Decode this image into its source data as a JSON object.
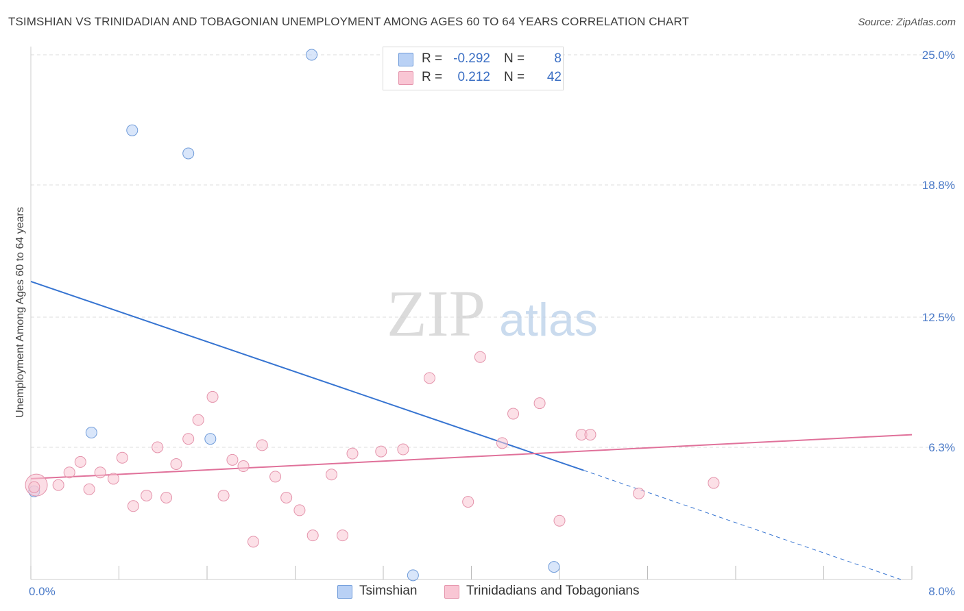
{
  "header": {
    "title": "TSIMSHIAN VS TRINIDADIAN AND TOBAGONIAN UNEMPLOYMENT AMONG AGES 60 TO 64 YEARS CORRELATION CHART",
    "source": "Source: ZipAtlas.com"
  },
  "watermark": {
    "zip": "ZIP",
    "atlas": "atlas"
  },
  "legend": {
    "rows": [
      {
        "r_label": "R =",
        "r_value": "-0.292",
        "n_label": "N =",
        "n_value": "8",
        "fill": "#b9d1f5",
        "stroke": "#6f9bd9"
      },
      {
        "r_label": "R =",
        "r_value": "0.212",
        "n_label": "N =",
        "n_value": "42",
        "fill": "#f9c6d4",
        "stroke": "#e493ab"
      }
    ],
    "bottom": [
      {
        "label": "Tsimshian",
        "fill": "#b9d1f5",
        "stroke": "#6f9bd9"
      },
      {
        "label": "Trinidadians and Tobagonians",
        "fill": "#f9c6d4",
        "stroke": "#e493ab"
      }
    ]
  },
  "chart_data": {
    "type": "scatter",
    "title": "TSIMSHIAN VS TRINIDADIAN AND TOBAGONIAN UNEMPLOYMENT AMONG AGES 60 TO 64 YEARS CORRELATION CHART",
    "xlabel": "",
    "ylabel": "Unemployment Among Ages 60 to 64 years",
    "xlim": [
      0,
      8.0
    ],
    "ylim": [
      0,
      25.0
    ],
    "x_tick_labels": [
      "0.0%",
      "8.0%"
    ],
    "y_ticks": [
      6.3,
      12.5,
      18.8,
      25.0
    ],
    "y_tick_labels": [
      "6.3%",
      "12.5%",
      "18.8%",
      "25.0%"
    ],
    "grid": true,
    "series": [
      {
        "name": "Tsimshian",
        "color": "#6f9bd9",
        "fill": "#b9d1f5",
        "points": [
          [
            0.03,
            4.2
          ],
          [
            0.55,
            7.0
          ],
          [
            0.92,
            21.4
          ],
          [
            1.43,
            20.3
          ],
          [
            1.63,
            6.7
          ],
          [
            2.55,
            25.0
          ],
          [
            3.47,
            0.2
          ],
          [
            4.75,
            0.6
          ]
        ],
        "trend": {
          "x0": 0.0,
          "y0": 14.2,
          "x1": 5.02,
          "y1": 5.2,
          "dash_to_x": 7.9,
          "dash_to_y": 0.0,
          "color": "#3674d1"
        }
      },
      {
        "name": "Trinidadians and Tobagonians",
        "color": "#e493ab",
        "fill": "#f9c6d4",
        "points": [
          [
            0.05,
            4.5
          ],
          [
            0.25,
            4.5
          ],
          [
            0.35,
            5.1
          ],
          [
            0.45,
            5.6
          ],
          [
            0.53,
            4.3
          ],
          [
            0.63,
            5.1
          ],
          [
            0.75,
            4.8
          ],
          [
            0.83,
            5.8
          ],
          [
            0.93,
            3.5
          ],
          [
            1.05,
            4.0
          ],
          [
            1.15,
            6.3
          ],
          [
            1.23,
            3.9
          ],
          [
            1.32,
            5.5
          ],
          [
            1.43,
            6.7
          ],
          [
            1.52,
            7.6
          ],
          [
            1.65,
            8.7
          ],
          [
            1.75,
            4.0
          ],
          [
            1.83,
            5.7
          ],
          [
            1.93,
            5.4
          ],
          [
            2.02,
            1.8
          ],
          [
            2.1,
            6.4
          ],
          [
            2.22,
            4.9
          ],
          [
            2.32,
            3.9
          ],
          [
            2.44,
            3.3
          ],
          [
            2.56,
            2.1
          ],
          [
            2.73,
            5.0
          ],
          [
            2.83,
            2.1
          ],
          [
            2.92,
            6.0
          ],
          [
            3.18,
            6.1
          ],
          [
            3.38,
            6.2
          ],
          [
            3.62,
            9.6
          ],
          [
            3.97,
            3.7
          ],
          [
            4.08,
            10.6
          ],
          [
            4.28,
            6.5
          ],
          [
            4.38,
            7.9
          ],
          [
            4.62,
            8.4
          ],
          [
            4.8,
            2.8
          ],
          [
            5.0,
            6.9
          ],
          [
            5.08,
            6.9
          ],
          [
            5.52,
            4.1
          ],
          [
            6.2,
            4.6
          ],
          [
            0.03,
            4.4
          ]
        ],
        "trend": {
          "x0": 0.0,
          "y0": 4.8,
          "x1": 8.0,
          "y1": 6.9,
          "color": "#e0719a"
        }
      }
    ]
  }
}
